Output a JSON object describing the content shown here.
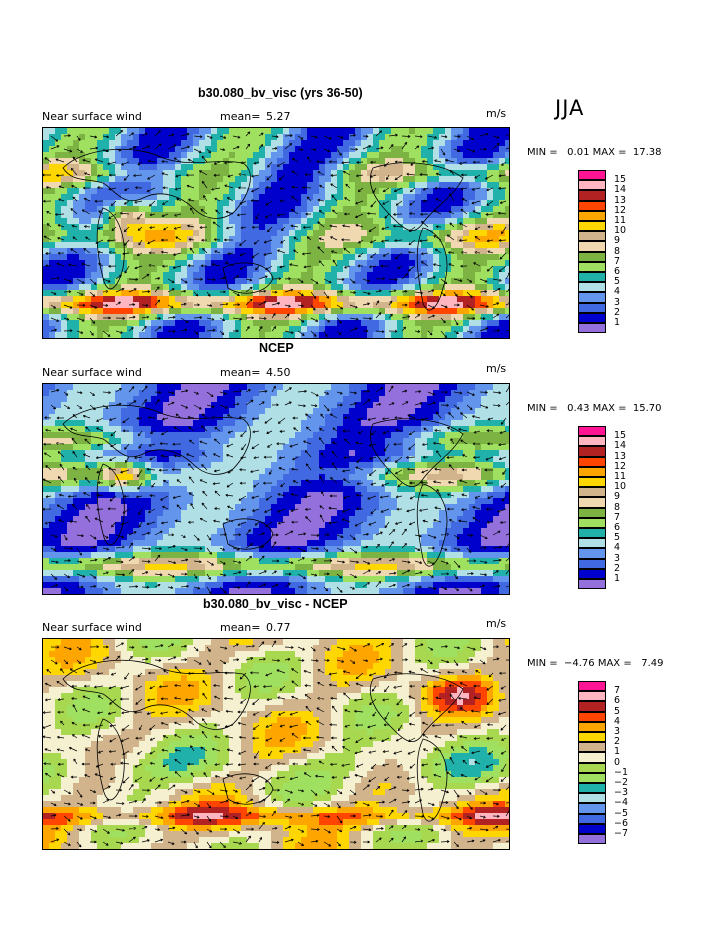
{
  "season": "JJA",
  "chart_data": [
    {
      "type": "heatmap",
      "title": "b30.080_bv_visc (yrs 36-50)",
      "field_label": "Near surface wind",
      "mean_label": "mean=",
      "mean_value": "5.27",
      "units": "m/s",
      "min_label": "MIN =",
      "min_value": "0.01",
      "max_label": "MAX =",
      "max_value": "17.38",
      "colorbar": [
        "1",
        "2",
        "3",
        "4",
        "5",
        "6",
        "7",
        "8",
        "9",
        "10",
        "11",
        "12",
        "13",
        "14",
        "15"
      ],
      "colors": [
        "#9370db",
        "#0000cd",
        "#4169e1",
        "#6495ed",
        "#b0e0e6",
        "#20b2aa",
        "#a0e060",
        "#7cb342",
        "#f0d8b0",
        "#d2b48c",
        "#ffd700",
        "#ffa500",
        "#ff4500",
        "#b22222",
        "#ffb6c1",
        "#ff1493"
      ]
    },
    {
      "type": "heatmap",
      "title": "NCEP",
      "field_label": "Near surface wind",
      "mean_label": "mean=",
      "mean_value": "4.50",
      "units": "m/s",
      "min_label": "MIN =",
      "min_value": "0.43",
      "max_label": "MAX =",
      "max_value": "15.70",
      "colorbar": [
        "1",
        "2",
        "3",
        "4",
        "5",
        "6",
        "7",
        "8",
        "9",
        "10",
        "11",
        "12",
        "13",
        "14",
        "15"
      ],
      "colors": [
        "#9370db",
        "#0000cd",
        "#4169e1",
        "#6495ed",
        "#b0e0e6",
        "#20b2aa",
        "#a0e060",
        "#7cb342",
        "#f0d8b0",
        "#d2b48c",
        "#ffd700",
        "#ffa500",
        "#ff4500",
        "#b22222",
        "#ffb6c1",
        "#ff1493"
      ]
    },
    {
      "type": "heatmap",
      "title": "b30.080_bv_visc - NCEP",
      "field_label": "Near surface wind",
      "mean_label": "mean=",
      "mean_value": "0.77",
      "units": "m/s",
      "min_label": "MIN =",
      "min_value": "−4.76",
      "max_label": "MAX =",
      "max_value": "7.49",
      "colorbar": [
        "−7",
        "−6",
        "−5",
        "−4",
        "−3",
        "−2",
        "−1",
        "0",
        "1",
        "2",
        "3",
        "4",
        "5",
        "6",
        "7"
      ],
      "colors": [
        "#9370db",
        "#0000cd",
        "#4169e1",
        "#6495ed",
        "#b0e0e6",
        "#20b2aa",
        "#a0e060",
        "#a8d850",
        "#f5f0d0",
        "#d2b48c",
        "#ffd700",
        "#ffa500",
        "#ff4500",
        "#b22222",
        "#ffb6c1",
        "#ff1493"
      ]
    }
  ]
}
